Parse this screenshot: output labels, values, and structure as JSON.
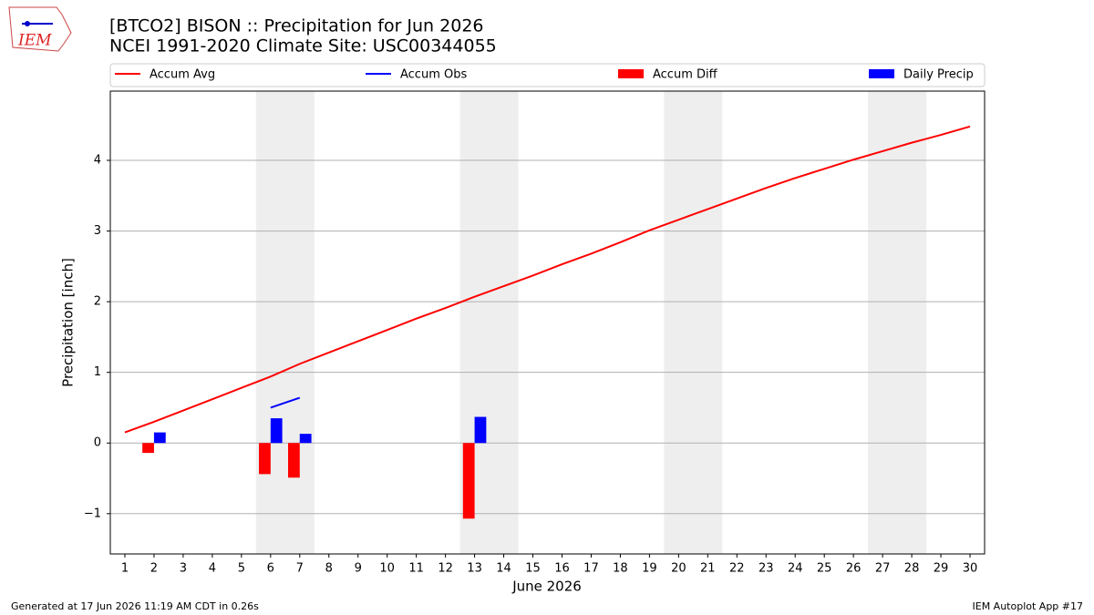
{
  "logo_text": "IEM",
  "footer": {
    "left": "Generated at 17 Jun 2026 11:19 AM CDT in 0.26s",
    "right": "IEM Autoplot App #17"
  },
  "chart_data": {
    "type": "bar",
    "title": "[BTCO2] BISON :: Precipitation for Jun 2026",
    "subtitle": "NCEI 1991-2020 Climate Site: USC00344055",
    "x_label": "June 2026",
    "y_label": "Precipitation [inch]",
    "x": [
      1,
      2,
      3,
      4,
      5,
      6,
      7,
      8,
      9,
      10,
      11,
      12,
      13,
      14,
      15,
      16,
      17,
      18,
      19,
      20,
      21,
      22,
      23,
      24,
      25,
      26,
      27,
      28,
      29,
      30
    ],
    "xlim": [
      0.5,
      30.5
    ],
    "ylim": [
      -1.57,
      4.98
    ],
    "yticks": [
      {
        "value": -1,
        "label": "−1"
      },
      0,
      1,
      2,
      3,
      4
    ],
    "grid": true,
    "shaded_ranges": [
      [
        5.5,
        7.5
      ],
      [
        12.5,
        14.5
      ],
      [
        19.5,
        21.5
      ],
      [
        26.5,
        28.5
      ]
    ],
    "series": [
      {
        "name": "Accum Avg",
        "type": "line",
        "color": "#ff0000",
        "values": [
          0.15,
          0.3,
          0.46,
          0.62,
          0.78,
          0.94,
          1.12,
          1.28,
          1.44,
          1.6,
          1.76,
          1.91,
          2.07,
          2.22,
          2.37,
          2.53,
          2.68,
          2.84,
          3.01,
          3.16,
          3.31,
          3.46,
          3.61,
          3.75,
          3.88,
          4.01,
          4.13,
          4.25,
          4.36,
          4.48
        ]
      },
      {
        "name": "Accum Obs",
        "type": "line",
        "color": "#0000ff",
        "values": [
          null,
          null,
          null,
          null,
          null,
          0.5,
          0.64,
          null,
          null,
          null,
          null,
          null,
          null,
          null,
          null,
          null,
          null,
          null,
          null,
          null,
          null,
          null,
          null,
          null,
          null,
          null,
          null,
          null,
          null,
          null
        ]
      },
      {
        "name": "Accum Diff",
        "type": "bar",
        "color": "#ff0000",
        "values": [
          null,
          -0.14,
          null,
          null,
          null,
          -0.44,
          -0.49,
          null,
          null,
          null,
          null,
          null,
          -1.07,
          null,
          null,
          null,
          null,
          null,
          null,
          null,
          null,
          null,
          null,
          null,
          null,
          null,
          null,
          null,
          null,
          null
        ]
      },
      {
        "name": "Daily Precip",
        "type": "bar",
        "color": "#0000ff",
        "values": [
          null,
          0.15,
          null,
          null,
          null,
          0.35,
          0.13,
          null,
          null,
          null,
          null,
          null,
          0.37,
          null,
          null,
          null,
          null,
          null,
          null,
          null,
          null,
          null,
          null,
          null,
          null,
          null,
          null,
          null,
          null,
          null
        ]
      }
    ]
  }
}
